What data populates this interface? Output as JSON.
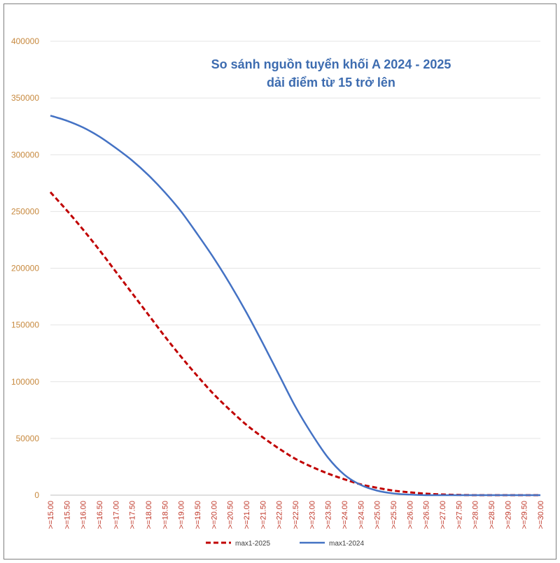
{
  "chart_data": {
    "type": "line",
    "title": "So sánh nguồn tuyển khối A 2024 - 2025",
    "subtitle": "dải điểm từ 15 trở lên",
    "xlabel": "",
    "ylabel": "",
    "ylim": [
      0,
      400000
    ],
    "yticks": [
      "0",
      "50000",
      "100000",
      "150000",
      "200000",
      "250000",
      "300000",
      "350000",
      "400000"
    ],
    "categories": [
      ">=15.00",
      ">=15.50",
      ">=16.00",
      ">=16.50",
      ">=17.00",
      ">=17.50",
      ">=18.00",
      ">=18.50",
      ">=19.00",
      ">=19.50",
      ">=20.00",
      ">=20.50",
      ">=21.00",
      ">=21.50",
      ">=22.00",
      ">=22.50",
      ">=23.00",
      ">=23.50",
      ">=24.00",
      ">=24.50",
      ">=25.00",
      ">=25.50",
      ">=26.00",
      ">=26.50",
      ">=27.00",
      ">=27.50",
      ">=28.00",
      ">=28.50",
      ">=29.00",
      ">=29.50",
      ">=30.00"
    ],
    "series": [
      {
        "name": "max1-2025",
        "color": "#c00000",
        "style": "dashed",
        "values": [
          267000,
          251000,
          234000,
          216000,
          197000,
          178000,
          159000,
          140000,
          122000,
          105000,
          89000,
          75000,
          62000,
          51000,
          41000,
          32000,
          25000,
          19000,
          14000,
          9500,
          6500,
          4000,
          2500,
          1300,
          600,
          200,
          0,
          0,
          0,
          0,
          0
        ]
      },
      {
        "name": "max1-2024",
        "color": "#4472c4",
        "style": "solid",
        "values": [
          334500,
          330000,
          324000,
          316000,
          306000,
          295000,
          282000,
          267000,
          250000,
          230000,
          209000,
          186000,
          161000,
          134000,
          106000,
          78000,
          54000,
          33000,
          18000,
          9000,
          4000,
          1500,
          500,
          0,
          0,
          0,
          0,
          0,
          0,
          0,
          0
        ]
      }
    ],
    "grid": true,
    "legend_position": "bottom"
  }
}
